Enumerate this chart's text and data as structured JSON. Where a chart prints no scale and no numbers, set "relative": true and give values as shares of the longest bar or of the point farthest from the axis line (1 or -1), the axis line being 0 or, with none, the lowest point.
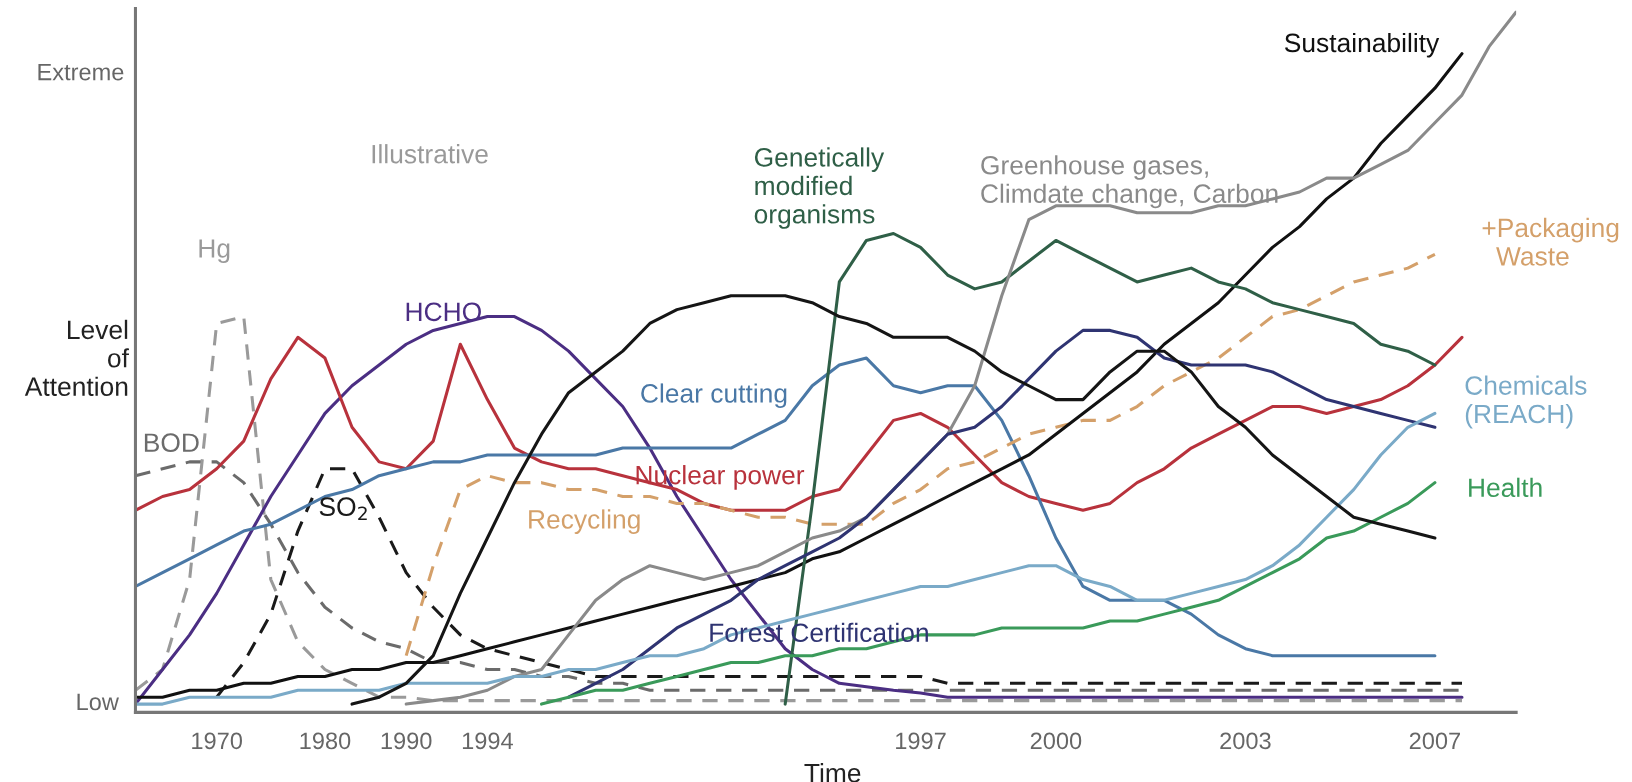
{
  "chart_data": {
    "type": "line",
    "relative": true,
    "xlabel": "Time",
    "ylabel": "Level\nof\nAttention",
    "categories": [
      null,
      null,
      null,
      "1970",
      null,
      null,
      null,
      "1980",
      null,
      null,
      "1990",
      null,
      null,
      "1994",
      null,
      null,
      null,
      null,
      null,
      null,
      null,
      null,
      null,
      null,
      null,
      null,
      null,
      null,
      null,
      "1997",
      null,
      null,
      null,
      null,
      "2000",
      null,
      null,
      null,
      null,
      null,
      null,
      "2003",
      null,
      null,
      null,
      null,
      null,
      null,
      "2007",
      null,
      null,
      null
    ],
    "series": [
      {
        "name": "BOD",
        "color": "#6b6b6b",
        "line_style": "dashed",
        "values": [
          0.33,
          0.34,
          0.35,
          0.35,
          0.32,
          0.26,
          0.19,
          0.14,
          0.11,
          0.09,
          0.08,
          0.06,
          0.06,
          0.05,
          0.05,
          0.04,
          0.04,
          0.03,
          0.03,
          0.02,
          0.02,
          0.02,
          0.02,
          0.02,
          0.02,
          0.02,
          0.02,
          0.02,
          0.02,
          0.02,
          0.02,
          0.02,
          0.02,
          0.02,
          0.02,
          0.02,
          0.02,
          0.02,
          0.02,
          0.02,
          0.02,
          0.02,
          0.02,
          0.02,
          0.02,
          0.02,
          0.02,
          0.02,
          0.02,
          0.02,
          null,
          null
        ]
      },
      {
        "name": "Hg",
        "color": "#9a9a9a",
        "line_style": "dashed",
        "values": [
          0.02,
          0.05,
          0.18,
          0.55,
          0.56,
          0.18,
          0.09,
          0.05,
          0.03,
          0.01,
          0.01,
          0.005,
          0.005,
          0.005,
          0.005,
          0.005,
          0.005,
          0.005,
          0.005,
          0.005,
          0.005,
          0.005,
          0.005,
          0.005,
          0.005,
          0.005,
          0.005,
          0.005,
          0.005,
          0.005,
          0.005,
          0.005,
          0.005,
          0.005,
          0.005,
          0.005,
          0.005,
          0.005,
          0.005,
          0.005,
          0.005,
          0.005,
          0.005,
          0.005,
          0.005,
          0.005,
          0.005,
          0.005,
          0.005,
          0.005,
          null,
          null
        ]
      },
      {
        "name": "SO$_{2}$",
        "color": "#1a1a1a",
        "line_style": "dashed",
        "values": [
          null,
          null,
          null,
          0.01,
          0.06,
          0.13,
          0.25,
          0.34,
          0.34,
          0.27,
          0.19,
          0.14,
          0.1,
          0.08,
          0.07,
          0.06,
          0.05,
          0.04,
          0.04,
          0.04,
          0.04,
          0.04,
          0.04,
          0.04,
          0.04,
          0.04,
          0.04,
          0.04,
          0.04,
          0.04,
          0.03,
          0.03,
          0.03,
          0.03,
          0.03,
          0.03,
          0.03,
          0.03,
          0.03,
          0.03,
          0.03,
          0.03,
          0.03,
          0.03,
          0.03,
          0.03,
          0.03,
          0.03,
          0.03,
          0.03,
          null,
          null
        ]
      },
      {
        "name": "HCHO",
        "color": "#4b2e83",
        "values": [
          0,
          0.05,
          0.1,
          0.16,
          0.23,
          0.3,
          0.36,
          0.42,
          0.46,
          0.49,
          0.52,
          0.54,
          0.55,
          0.56,
          0.56,
          0.54,
          0.51,
          0.47,
          0.43,
          0.37,
          0.3,
          0.24,
          0.18,
          0.13,
          0.08,
          0.05,
          0.03,
          0.025,
          0.02,
          0.016,
          0.01,
          0.01,
          0.01,
          0.01,
          0.01,
          0.01,
          0.01,
          0.01,
          0.01,
          0.01,
          0.01,
          0.01,
          0.01,
          0.01,
          0.01,
          0.01,
          0.01,
          0.01,
          0.01,
          0.01,
          null,
          null
        ]
      },
      {
        "name": "Nuclear power",
        "color": "#b8323c",
        "values": [
          0.28,
          0.3,
          0.31,
          0.34,
          0.38,
          0.47,
          0.53,
          0.5,
          0.4,
          0.35,
          0.34,
          0.38,
          0.52,
          0.44,
          0.37,
          0.35,
          0.34,
          0.34,
          0.33,
          0.32,
          0.31,
          0.29,
          0.28,
          0.28,
          0.28,
          0.3,
          0.31,
          0.36,
          0.41,
          0.42,
          0.4,
          0.36,
          0.32,
          0.3,
          0.29,
          0.28,
          0.29,
          0.32,
          0.34,
          0.37,
          0.39,
          0.41,
          0.43,
          0.43,
          0.42,
          0.43,
          0.44,
          0.46,
          0.49,
          0.53,
          null,
          null
        ]
      },
      {
        "name": "Clear cutting",
        "color": "#4a78a6",
        "values": [
          0.17,
          0.19,
          0.21,
          0.23,
          0.25,
          0.26,
          0.28,
          0.3,
          0.31,
          0.33,
          0.34,
          0.35,
          0.35,
          0.36,
          0.36,
          0.36,
          0.36,
          0.36,
          0.37,
          0.37,
          0.37,
          0.37,
          0.37,
          0.39,
          0.41,
          0.46,
          0.49,
          0.5,
          0.46,
          0.45,
          0.46,
          0.46,
          0.41,
          0.33,
          0.24,
          0.17,
          0.15,
          0.15,
          0.15,
          0.13,
          0.1,
          0.08,
          0.07,
          0.07,
          0.07,
          0.07,
          0.07,
          0.07,
          0.07,
          null,
          null,
          null
        ]
      },
      {
        "name": "Recycling",
        "color": "#d4a06a",
        "line_style": "dashed",
        "values": [
          null,
          null,
          null,
          null,
          null,
          null,
          null,
          null,
          null,
          null,
          0.07,
          0.2,
          0.31,
          0.33,
          0.32,
          0.32,
          0.31,
          0.31,
          0.3,
          0.3,
          0.29,
          0.29,
          0.28,
          0.27,
          0.27,
          0.26,
          0.26,
          0.26,
          0.29,
          0.31,
          0.34,
          0.35,
          0.37,
          0.39,
          0.4,
          0.41,
          0.41,
          0.43,
          0.46,
          0.48,
          0.5,
          0.53,
          0.56,
          0.57,
          0.59,
          0.61,
          0.62,
          0.63,
          0.65,
          null,
          null,
          null
        ]
      },
      {
        "name": "Sustainability",
        "color": "#111111",
        "values": [
          0.01,
          0.01,
          0.02,
          0.02,
          0.03,
          0.03,
          0.04,
          0.04,
          0.05,
          0.05,
          0.06,
          0.06,
          0.07,
          0.08,
          0.09,
          0.1,
          0.11,
          0.12,
          0.13,
          0.14,
          0.15,
          0.16,
          0.17,
          0.18,
          0.19,
          0.21,
          0.22,
          0.24,
          0.26,
          0.28,
          0.3,
          0.32,
          0.34,
          0.36,
          0.39,
          0.42,
          0.45,
          0.48,
          0.52,
          0.55,
          0.58,
          0.62,
          0.66,
          0.69,
          0.73,
          0.76,
          0.81,
          0.85,
          0.89,
          0.94,
          null,
          null
        ]
      },
      {
        "name": "Genetically\nmodified\norganisms",
        "color": "#2f5f47",
        "values": [
          null,
          null,
          null,
          null,
          null,
          null,
          null,
          null,
          null,
          null,
          null,
          null,
          null,
          null,
          null,
          null,
          null,
          null,
          null,
          null,
          null,
          null,
          null,
          null,
          0,
          0.29,
          0.61,
          0.67,
          0.68,
          0.66,
          0.62,
          0.6,
          0.61,
          0.64,
          0.67,
          0.65,
          0.63,
          0.61,
          0.62,
          0.63,
          0.61,
          0.6,
          0.58,
          0.57,
          0.56,
          0.55,
          0.52,
          0.51,
          0.49,
          null,
          null,
          null
        ]
      },
      {
        "name": "Greenhouse gases,\nClimdate change, Carbon",
        "color": "#8a8a8a",
        "values": [
          null,
          null,
          null,
          null,
          null,
          null,
          null,
          null,
          null,
          null,
          0,
          0.005,
          0.01,
          0.02,
          0.04,
          0.05,
          0.1,
          0.15,
          0.18,
          0.2,
          0.19,
          0.18,
          0.19,
          0.2,
          0.22,
          0.24,
          0.25,
          0.27,
          0.31,
          0.35,
          0.39,
          0.46,
          0.59,
          0.7,
          0.72,
          0.72,
          0.72,
          0.71,
          0.71,
          0.71,
          0.72,
          0.72,
          0.73,
          0.74,
          0.76,
          0.76,
          0.78,
          0.8,
          0.84,
          0.88,
          0.95,
          1.0
        ]
      },
      {
        "name": "Forest Certification",
        "color": "#2f3472",
        "values": [
          null,
          null,
          null,
          null,
          null,
          null,
          null,
          null,
          null,
          null,
          null,
          null,
          null,
          null,
          null,
          null,
          0.01,
          0.03,
          0.05,
          0.08,
          0.11,
          0.13,
          0.15,
          0.18,
          0.2,
          0.22,
          0.24,
          0.27,
          0.31,
          0.35,
          0.39,
          0.4,
          0.43,
          0.47,
          0.51,
          0.54,
          0.54,
          0.53,
          0.5,
          0.49,
          0.49,
          0.49,
          0.48,
          0.46,
          0.44,
          0.43,
          0.42,
          0.41,
          0.4,
          null,
          null,
          null
        ]
      },
      {
        "name": "Chemicals\n(REACH)",
        "color": "#7aaac8",
        "values": [
          0,
          0,
          0.01,
          0.01,
          0.01,
          0.01,
          0.02,
          0.02,
          0.02,
          0.02,
          0.03,
          0.03,
          0.03,
          0.03,
          0.04,
          0.04,
          0.05,
          0.05,
          0.06,
          0.07,
          0.07,
          0.08,
          0.1,
          0.11,
          0.12,
          0.13,
          0.14,
          0.15,
          0.16,
          0.17,
          0.17,
          0.18,
          0.19,
          0.2,
          0.2,
          0.18,
          0.17,
          0.15,
          0.15,
          0.16,
          0.17,
          0.18,
          0.2,
          0.23,
          0.27,
          0.31,
          0.36,
          0.4,
          0.42,
          null,
          null,
          null
        ]
      },
      {
        "name": "Health",
        "color": "#3a9a5a",
        "values": [
          null,
          null,
          null,
          null,
          null,
          null,
          null,
          null,
          null,
          null,
          null,
          null,
          null,
          null,
          null,
          0,
          0.01,
          0.02,
          0.02,
          0.03,
          0.04,
          0.05,
          0.06,
          0.06,
          0.07,
          0.07,
          0.08,
          0.08,
          0.09,
          0.1,
          0.1,
          0.1,
          0.11,
          0.11,
          0.11,
          0.11,
          0.12,
          0.12,
          0.13,
          0.14,
          0.15,
          0.17,
          0.19,
          0.21,
          0.24,
          0.25,
          0.27,
          0.29,
          0.32,
          null,
          null,
          null
        ]
      },
      {
        "color": "#151515",
        "values": [
          null,
          null,
          null,
          null,
          null,
          null,
          null,
          null,
          0,
          0.01,
          0.03,
          0.07,
          0.16,
          0.24,
          0.32,
          0.39,
          0.45,
          0.48,
          0.51,
          0.55,
          0.57,
          0.58,
          0.59,
          0.59,
          0.59,
          0.58,
          0.56,
          0.55,
          0.53,
          0.53,
          0.53,
          0.51,
          0.48,
          0.46,
          0.44,
          0.44,
          0.48,
          0.51,
          0.51,
          0.48,
          0.43,
          0.4,
          0.36,
          0.33,
          0.3,
          0.27,
          0.26,
          0.25,
          0.24,
          null,
          null,
          null
        ]
      }
    ],
    "annotations": [
      "Illustrative",
      "+Packaging\n  Waste",
      "Low",
      "Extreme"
    ]
  }
}
